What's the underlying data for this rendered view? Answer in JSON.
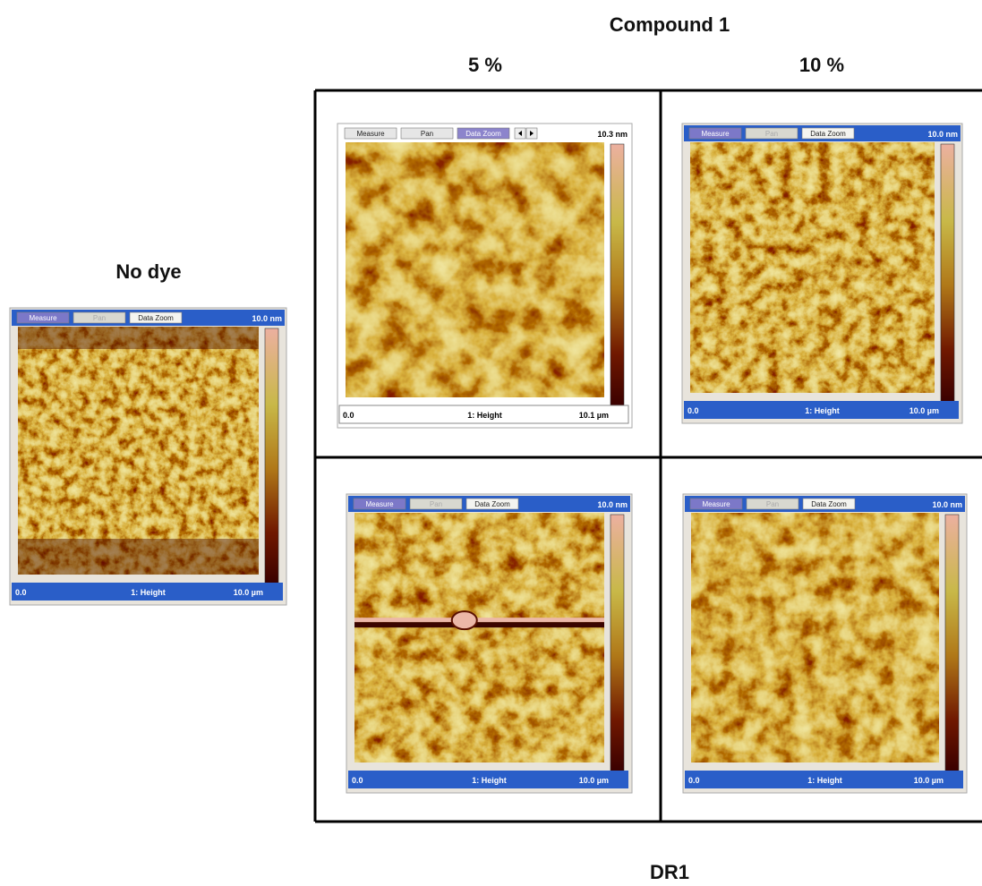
{
  "header": {
    "title": "Compound 1",
    "columns": [
      "5 %",
      "10 %"
    ]
  },
  "reference_label": "No dye",
  "bottom_label": "DR1",
  "panels": [
    {
      "buttons": [
        "Measure",
        "Pan",
        "Data Zoom"
      ],
      "scale_max": "10.0 nm",
      "x_min": "0.0",
      "channel": "1: Height",
      "x_max": "10.0 µm"
    },
    {
      "buttons": [
        "Measure",
        "Pan",
        "Data Zoom"
      ],
      "scale_max": "10.3 nm",
      "x_min": "0.0",
      "channel": "1: Height",
      "x_max": "10.1 µm"
    },
    {
      "buttons": [
        "Measure",
        "Pan",
        "Data Zoom"
      ],
      "scale_max": "10.0 nm",
      "x_min": "0.0",
      "channel": "1: Height",
      "x_max": "10.0 µm"
    },
    {
      "buttons": [
        "Measure",
        "Pan",
        "Data Zoom"
      ],
      "scale_max": "10.0 nm",
      "x_min": "0.0",
      "channel": "1: Height",
      "x_max": "10.0 µm"
    },
    {
      "buttons": [
        "Measure",
        "Pan",
        "Data Zoom"
      ],
      "scale_max": "10.0 nm",
      "x_min": "0.0",
      "channel": "1: Height",
      "x_max": "10.0 µm"
    }
  ]
}
